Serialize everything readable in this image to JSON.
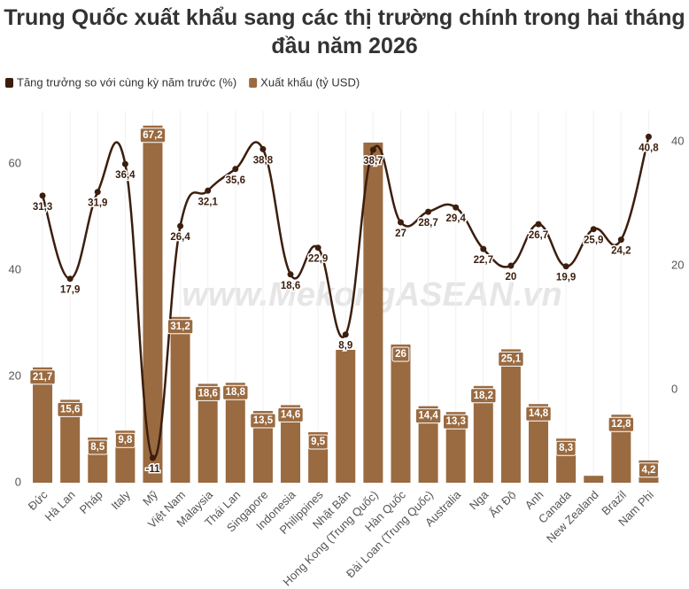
{
  "chart_data": {
    "type": "bar-line",
    "title": "Trung Quốc xuất khẩu sang các thị trường chính trong hai tháng đầu năm 2026",
    "watermark": "www.MekongASEAN.vn",
    "categories": [
      "Đức",
      "Hà Lan",
      "Pháp",
      "Italy",
      "Mỹ",
      "Việt Nam",
      "Malaysia",
      "Thái Lan",
      "Singapore",
      "Indonesia",
      "Philippines",
      "Nhật Bản",
      "Hong Kong (Trung Quốc)",
      "Hàn Quốc",
      "Đài Loan (Trung Quốc)",
      "Australia",
      "Nga",
      "Ấn Độ",
      "Anh",
      "Canada",
      "New Zealand",
      "Brazil",
      "Nam Phi"
    ],
    "series": [
      {
        "name": "Tăng trưởng so với cùng kỳ năm trước (%)",
        "type": "line",
        "axis": "y2",
        "color": "#3b1e0e",
        "values": [
          31.3,
          17.9,
          31.9,
          36.4,
          -11,
          26.4,
          32.1,
          35.6,
          38.8,
          18.6,
          22.9,
          8.9,
          38.7,
          27,
          28.7,
          29.4,
          22.7,
          20,
          26.7,
          19.9,
          25.9,
          24.2,
          40.8
        ],
        "value_labels": [
          "31,3",
          "17,9",
          "31,9",
          "36,4",
          "-11",
          "26,4",
          "32,1",
          "35,6",
          "38,8",
          "18,6",
          "22,9",
          "8,9",
          "38,7",
          "27",
          "28,7",
          "29,4",
          "22,7",
          "20",
          "26,7",
          "19,9",
          "25,9",
          "24,2",
          "40,8"
        ]
      },
      {
        "name": "Xuất khẩu (tỷ USD)",
        "type": "bar",
        "color": "#9a6a40",
        "values": [
          21.7,
          15.6,
          8.5,
          9.8,
          67.2,
          31.2,
          18.6,
          18.8,
          13.5,
          14.6,
          9.5,
          25,
          64,
          26,
          14.4,
          13.3,
          18.2,
          25.1,
          14.8,
          8.3,
          1.3,
          12.8,
          4.2
        ],
        "value_labels": [
          "21,7",
          "15,6",
          "8,5",
          "9,8",
          "67,2",
          "31,2",
          "18,6",
          "18,8",
          "13,5",
          "14,6",
          "9,5",
          null,
          null,
          "26",
          "14,4",
          "13,3",
          "18,2",
          "25,1",
          "14,8",
          "8,3",
          null,
          "12,8",
          "4,2"
        ]
      }
    ],
    "ylim": [
      0,
      70
    ],
    "yticks": [
      0,
      20,
      40,
      60
    ],
    "y2lim": [
      -15,
      45
    ],
    "y2ticks": [
      0,
      20,
      40
    ],
    "legend": "top-left"
  }
}
